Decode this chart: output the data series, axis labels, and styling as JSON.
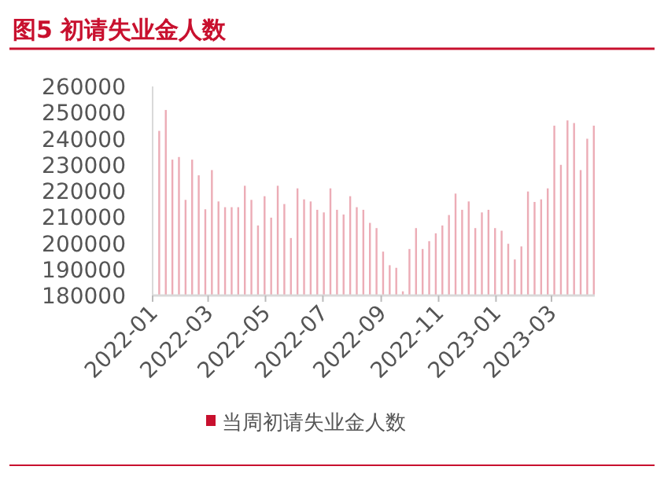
{
  "chart_data": {
    "type": "bar",
    "title": "图5 初请失业金人数",
    "x": [
      "2022-01-08",
      "2022-01-15",
      "2022-01-22",
      "2022-01-29",
      "2022-02-05",
      "2022-02-12",
      "2022-02-19",
      "2022-02-26",
      "2022-03-05",
      "2022-03-12",
      "2022-03-19",
      "2022-03-26",
      "2022-04-02",
      "2022-04-09",
      "2022-04-16",
      "2022-04-23",
      "2022-04-30",
      "2022-05-07",
      "2022-05-14",
      "2022-05-21",
      "2022-05-28",
      "2022-06-04",
      "2022-06-11",
      "2022-06-18",
      "2022-06-25",
      "2022-07-02",
      "2022-07-09",
      "2022-07-16",
      "2022-07-23",
      "2022-07-30",
      "2022-08-06",
      "2022-08-13",
      "2022-08-20",
      "2022-08-27",
      "2022-09-03",
      "2022-09-10",
      "2022-09-17",
      "2022-09-24",
      "2022-10-01",
      "2022-10-08",
      "2022-10-15",
      "2022-10-22",
      "2022-10-29",
      "2022-11-05",
      "2022-11-12",
      "2022-11-19",
      "2022-11-26",
      "2022-12-03",
      "2022-12-10",
      "2022-12-17",
      "2022-12-24",
      "2022-12-31",
      "2023-01-07",
      "2023-01-14",
      "2023-01-21",
      "2023-01-28",
      "2023-02-04",
      "2023-02-11",
      "2023-02-18",
      "2023-02-25",
      "2023-03-04",
      "2023-03-11",
      "2023-03-18",
      "2023-03-25",
      "2023-04-01",
      "2023-04-08",
      "2023-04-15"
    ],
    "series": [
      {
        "name": "当周初请失业金人数",
        "color": "#c8102e",
        "values": [
          243000,
          251000,
          232000,
          233000,
          216600,
          232000,
          226000,
          213000,
          228000,
          216000,
          213800,
          213800,
          213800,
          222000,
          216600,
          206800,
          218000,
          209800,
          222000,
          215000,
          202000,
          221000,
          216800,
          216000,
          212800,
          211800,
          221000,
          212800,
          211000,
          218000,
          213800,
          212800,
          207800,
          205800,
          196800,
          191600,
          190600,
          181600,
          197800,
          205800,
          197800,
          200800,
          203800,
          206800,
          210800,
          219000,
          212800,
          216000,
          205800,
          211800,
          212800,
          205800,
          204800,
          199800,
          193800,
          198800,
          219800,
          215800,
          216800,
          221000,
          245000,
          230000,
          247000,
          246000,
          228000,
          240000,
          245000
        ]
      }
    ],
    "xlim": [
      "2022-01-01",
      "2023-04-16"
    ],
    "xticks": [
      "2022-01",
      "2022-03",
      "2022-05",
      "2022-07",
      "2022-09",
      "2022-11",
      "2023-01",
      "2023-03"
    ],
    "ylim": [
      180000,
      260000
    ],
    "yticks": [
      180000,
      190000,
      200000,
      210000,
      220000,
      230000,
      240000,
      250000,
      260000
    ],
    "grid": false,
    "legend": "bottom"
  }
}
